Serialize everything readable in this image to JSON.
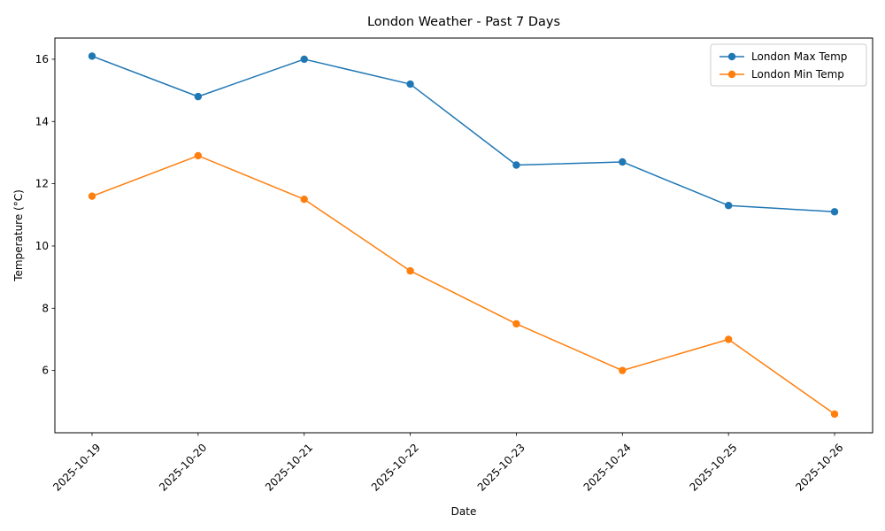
{
  "chart_data": {
    "type": "line",
    "title": "London Weather - Past 7 Days",
    "xlabel": "Date",
    "ylabel": "Temperature (°C)",
    "categories": [
      "2025-10-19",
      "2025-10-20",
      "2025-10-21",
      "2025-10-22",
      "2025-10-23",
      "2025-10-24",
      "2025-10-25",
      "2025-10-26"
    ],
    "series": [
      {
        "name": "London Max Temp",
        "color": "#1f77b4",
        "values": [
          16.1,
          14.8,
          16.0,
          15.2,
          12.6,
          12.7,
          11.3,
          11.1
        ]
      },
      {
        "name": "London Min Temp",
        "color": "#ff7f0e",
        "values": [
          11.6,
          12.9,
          11.5,
          9.2,
          7.5,
          6.0,
          7.0,
          4.6
        ]
      }
    ],
    "yticks": [
      6,
      8,
      10,
      12,
      14,
      16
    ],
    "ylim": [
      4.0,
      16.68
    ],
    "grid": false,
    "legend_position": "top-right",
    "x_tick_rotation": 45
  }
}
